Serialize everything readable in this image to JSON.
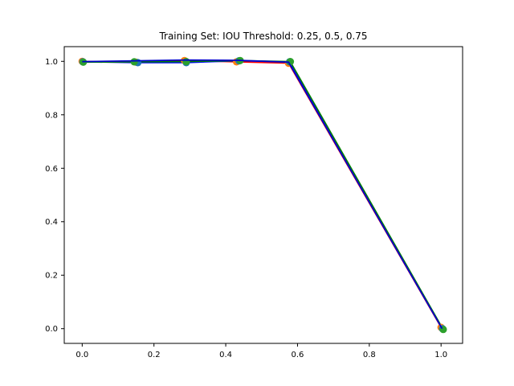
{
  "chart_data": {
    "type": "line",
    "title": "Training Set: IOU Threshold: 0.25, 0.5, 0.75",
    "xlabel": "",
    "ylabel": "",
    "xlim": [
      -0.05,
      1.06
    ],
    "ylim": [
      -0.055,
      1.055
    ],
    "xticks": [
      0.0,
      0.2,
      0.4,
      0.6,
      0.8,
      1.0
    ],
    "xtick_labels": [
      "0.0",
      "0.2",
      "0.4",
      "0.6",
      "0.8",
      "1.0"
    ],
    "yticks": [
      0.0,
      0.2,
      0.4,
      0.6,
      0.8,
      1.0
    ],
    "ytick_labels": [
      "0.0",
      "0.2",
      "0.4",
      "0.6",
      "0.8",
      "1.0"
    ],
    "grid": false,
    "legend": "none",
    "series": [
      {
        "color": "#ff7f0e",
        "line_color": "#ff0000",
        "x": [
          0.0,
          0.15,
          0.285,
          0.43,
          0.575,
          1.0
        ],
        "y": [
          1.0,
          0.997,
          1.003,
          0.998,
          0.993,
          0.005
        ]
      },
      {
        "color": "#1f77b4",
        "line_color": "#0000ff",
        "x": [
          0.002,
          0.155,
          0.29,
          0.437,
          0.578,
          1.004
        ],
        "y": [
          0.998,
          0.995,
          0.995,
          1.002,
          0.998,
          0.0
        ]
      },
      {
        "color": "#2ca02c",
        "line_color": "#008000",
        "x": [
          0.003,
          0.145,
          0.29,
          0.44,
          0.58,
          1.006
        ],
        "y": [
          0.997,
          0.998,
          0.999,
          1.003,
          0.999,
          -0.003
        ]
      }
    ],
    "overlay_line": {
      "color": "#0000cc",
      "x": [
        0.0,
        0.15,
        0.285,
        0.435,
        0.575,
        1.003
      ],
      "y": [
        0.999,
        1.002,
        1.005,
        1.004,
        0.997,
        0.0
      ]
    }
  }
}
